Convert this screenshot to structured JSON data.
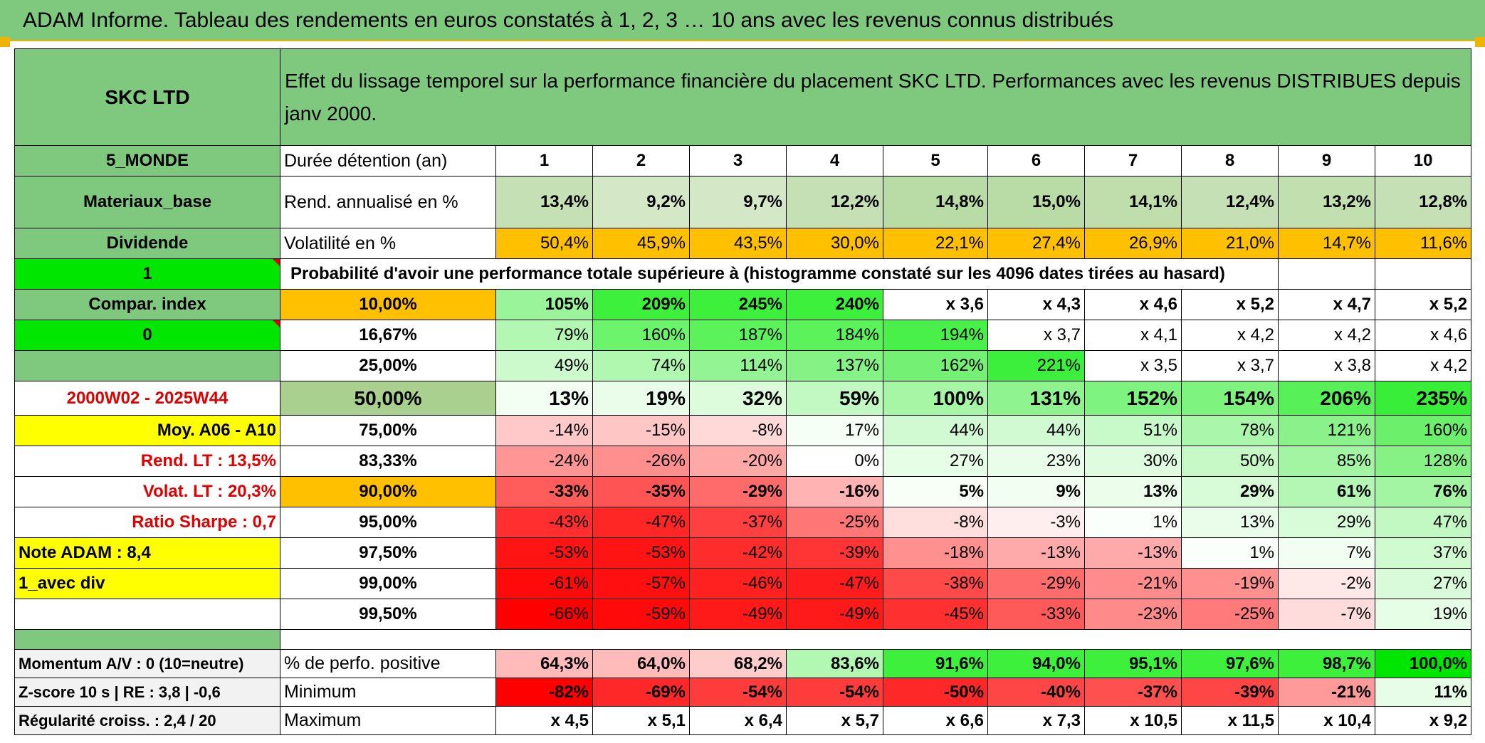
{
  "title": "ADAM Informe. Tableau des rendements en euros constatés à 1, 2, 3 … 10 ans avec les revenus connus distribués",
  "header": {
    "name": "SKC LTD",
    "description": "Effet du lissage temporel sur la performance financière du placement SKC LTD. Performances avec les revenus DISTRIBUES depuis janv 2000."
  },
  "side": {
    "region": "5_MONDE",
    "sector": "Materiaux_base",
    "dividend": "Dividende",
    "flag1": "1",
    "compar": "Compar. index",
    "flag2": "0",
    "period": "2000W02 - 2025W44",
    "moy": "Moy. A06 - A10",
    "rend_lt": "Rend. LT :   13,5%",
    "volat_lt": "Volat. LT :   20,3%",
    "sharpe": "Ratio Sharpe :    0,7",
    "note": "Note ADAM : 8,4",
    "avec_div": "1_avec div",
    "momentum": "Momentum A/V : 0 (10=neutre)",
    "zscore": "Z-score 10 s | RE : 3,8 | -0,6",
    "regularite": "Régularité croiss. : 2,4 / 20"
  },
  "labels": {
    "duree": "Durée détention (an)",
    "rend": "Rend. annualisé en %",
    "vol": "Volatilité en %",
    "proba": "Probabilité d'avoir une performance totale supérieure à (histogramme constaté sur les 4096 dates tirées au hasard)",
    "positive": "% de perfo. positive",
    "minimum": "Minimum",
    "maximum": "Maximum"
  },
  "years": [
    "1",
    "2",
    "3",
    "4",
    "5",
    "6",
    "7",
    "8",
    "9",
    "10"
  ],
  "rend": [
    "13,4%",
    "9,2%",
    "9,7%",
    "12,2%",
    "14,8%",
    "15,0%",
    "14,1%",
    "12,4%",
    "13,2%",
    "12,8%"
  ],
  "vol": [
    "50,4%",
    "45,9%",
    "43,5%",
    "30,0%",
    "22,1%",
    "27,4%",
    "26,9%",
    "21,0%",
    "14,7%",
    "11,6%"
  ],
  "perc_rows": [
    {
      "p": "10,00%",
      "v": [
        "105%",
        "209%",
        "245%",
        "240%",
        "x 3,6",
        "x 4,3",
        "x 4,6",
        "x 5,2",
        "x 4,7",
        "x 5,2"
      ]
    },
    {
      "p": "16,67%",
      "v": [
        "79%",
        "160%",
        "187%",
        "184%",
        "194%",
        "x 3,7",
        "x 4,1",
        "x 4,2",
        "x 4,2",
        "x 4,6"
      ]
    },
    {
      "p": "25,00%",
      "v": [
        "49%",
        "74%",
        "114%",
        "137%",
        "162%",
        "221%",
        "x 3,5",
        "x 3,7",
        "x 3,8",
        "x 4,2"
      ]
    },
    {
      "p": "50,00%",
      "v": [
        "13%",
        "19%",
        "32%",
        "59%",
        "100%",
        "131%",
        "152%",
        "154%",
        "206%",
        "235%"
      ]
    },
    {
      "p": "75,00%",
      "v": [
        "-14%",
        "-15%",
        "-8%",
        "17%",
        "44%",
        "44%",
        "51%",
        "78%",
        "121%",
        "160%"
      ]
    },
    {
      "p": "83,33%",
      "v": [
        "-24%",
        "-26%",
        "-20%",
        "0%",
        "27%",
        "23%",
        "30%",
        "50%",
        "85%",
        "128%"
      ]
    },
    {
      "p": "90,00%",
      "v": [
        "-33%",
        "-35%",
        "-29%",
        "-16%",
        "5%",
        "9%",
        "13%",
        "29%",
        "61%",
        "76%"
      ]
    },
    {
      "p": "95,00%",
      "v": [
        "-43%",
        "-47%",
        "-37%",
        "-25%",
        "-8%",
        "-3%",
        "1%",
        "13%",
        "29%",
        "47%"
      ]
    },
    {
      "p": "97,50%",
      "v": [
        "-53%",
        "-53%",
        "-42%",
        "-39%",
        "-18%",
        "-13%",
        "-13%",
        "1%",
        "7%",
        "37%"
      ]
    },
    {
      "p": "99,00%",
      "v": [
        "-61%",
        "-57%",
        "-46%",
        "-47%",
        "-38%",
        "-29%",
        "-21%",
        "-19%",
        "-2%",
        "27%"
      ]
    },
    {
      "p": "99,50%",
      "v": [
        "-66%",
        "-59%",
        "-49%",
        "-49%",
        "-45%",
        "-33%",
        "-23%",
        "-25%",
        "-7%",
        "19%"
      ]
    }
  ],
  "positive": [
    "64,3%",
    "64,0%",
    "68,2%",
    "83,6%",
    "91,6%",
    "94,0%",
    "95,1%",
    "97,6%",
    "98,7%",
    "100,0%"
  ],
  "minimum": [
    "-82%",
    "-69%",
    "-54%",
    "-54%",
    "-50%",
    "-40%",
    "-37%",
    "-39%",
    "-21%",
    "11%"
  ],
  "maximum": [
    "x 4,5",
    "x 5,1",
    "x 6,4",
    "x 5,7",
    "x 6,6",
    "x 7,3",
    "x 10,5",
    "x 11,5",
    "x 10,4",
    "x 9,2"
  ],
  "colors": {
    "title_green": "#7fc97f",
    "header_green": "#7fc97f",
    "bright_green": "#00e600",
    "orange": "#ffc000",
    "yellow": "#ffff00",
    "red_text": "#e00000",
    "rend_green": "#c5e0b4",
    "median_pct": "#a9d08e"
  },
  "cell_colors": {
    "vol": [
      "#ffc000",
      "#ffc000",
      "#ffc000",
      "#ffc000",
      "#ffc000",
      "#ffc000",
      "#ffc000",
      "#ffc000",
      "#ffc000",
      "#ffc000"
    ],
    "perc": [
      [
        "#9af59a",
        "#3cf03c",
        "#3cf03c",
        "#3cf03c",
        "#ffffff",
        "#ffffff",
        "#ffffff",
        "#ffffff",
        "#ffffff",
        "#ffffff"
      ],
      [
        "#b2f7b2",
        "#6cf56c",
        "#5cf25c",
        "#5cf25c",
        "#4af04a",
        "#ffffff",
        "#ffffff",
        "#ffffff",
        "#ffffff",
        "#ffffff"
      ],
      [
        "#cdfacd",
        "#b0f7b0",
        "#92f492",
        "#84f284",
        "#74f074",
        "#3cef3c",
        "#ffffff",
        "#ffffff",
        "#ffffff",
        "#ffffff"
      ],
      [
        "#f2fff2",
        "#eafdea",
        "#dcfcdc",
        "#c2f9c2",
        "#a6f6a6",
        "#8ff48f",
        "#7ff37f",
        "#7ef37e",
        "#58f058",
        "#38ee38"
      ],
      [
        "#ffc9c9",
        "#ffc6c6",
        "#ffd8d8",
        "#f5fff5",
        "#d2fad2",
        "#d2fad2",
        "#c8f9c8",
        "#aaf6aa",
        "#8bf28b",
        "#6cf06c"
      ],
      [
        "#ff9595",
        "#ff8f8f",
        "#ffa8a8",
        "#ffffff",
        "#e6fde6",
        "#eafdea",
        "#dffcdf",
        "#c6f9c6",
        "#a3f5a3",
        "#86f286"
      ],
      [
        "#ff5c5c",
        "#ff5454",
        "#ff6a6a",
        "#ffb3b3",
        "#f7fff7",
        "#f1fef1",
        "#ecfdec",
        "#d8fbd8",
        "#b4f7b4",
        "#a3f5a3"
      ],
      [
        "#ff2f2f",
        "#ff2626",
        "#ff4040",
        "#ff7676",
        "#ffdede",
        "#ffeeee",
        "#fbfffb",
        "#eafdea",
        "#d8fbd8",
        "#c2f9c2"
      ],
      [
        "#ff1414",
        "#ff1414",
        "#ff2c2c",
        "#ff3434",
        "#ff9090",
        "#ffaaaa",
        "#ffaaaa",
        "#fbfffb",
        "#f3fef3",
        "#d0faD0"
      ],
      [
        "#ff0a0a",
        "#ff0f0f",
        "#ff2020",
        "#ff1c1c",
        "#ff4a4a",
        "#ff6c6c",
        "#ff8c8c",
        "#ff9090",
        "#ffe8e8",
        "#dafbda"
      ],
      [
        "#ff0000",
        "#ff0a0a",
        "#ff1a1a",
        "#ff1a1a",
        "#ff3030",
        "#ff5a5a",
        "#ff8a8a",
        "#ff7a7a",
        "#ffdcdc",
        "#e6fde6"
      ]
    ],
    "positive": [
      "#ffbaba",
      "#ffbaba",
      "#ffcccc",
      "#b2f7b2",
      "#3cf03c",
      "#3cf03c",
      "#3cf03c",
      "#3cf03c",
      "#3cf03c",
      "#00e600"
    ],
    "minimum": [
      "#ff0000",
      "#ff2828",
      "#ff3c3c",
      "#ff3c3c",
      "#ff2828",
      "#ff4646",
      "#ff5050",
      "#ff4646",
      "#ff9a9a",
      "#e8fde8"
    ]
  }
}
